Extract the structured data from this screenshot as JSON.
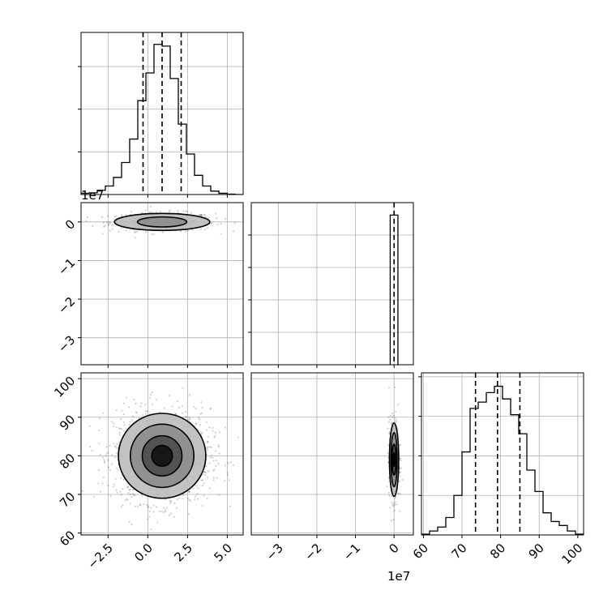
{
  "chart_data": {
    "type": "corner",
    "grid": true,
    "parameters": [
      {
        "range": [
          -4.2,
          6.0
        ],
        "ticks": [
          -2.5,
          0.0,
          2.5,
          5.0
        ],
        "tick_labels": [
          "−2.5",
          "0.0",
          "2.5",
          "5.0"
        ],
        "offset_text": "1e7",
        "quantiles": [
          -0.3,
          0.9,
          2.1
        ]
      },
      {
        "range": [
          -3.7,
          0.5
        ],
        "ticks": [
          -3,
          -2,
          -1,
          0
        ],
        "tick_labels": [
          "−3",
          "−2",
          "−1",
          "0"
        ],
        "offset_text": "1e7",
        "quantiles": [
          0.0
        ]
      },
      {
        "range": [
          59.5,
          101.5
        ],
        "ticks": [
          60,
          70,
          80,
          90,
          100
        ],
        "tick_labels": [
          "60",
          "70",
          "80",
          "90",
          "100"
        ],
        "offset_text": "",
        "quantiles": [
          73.5,
          79.2,
          85.0
        ]
      }
    ],
    "histograms": [
      {
        "bin_edges": [
          -4.2,
          -3.69,
          -3.18,
          -2.67,
          -2.16,
          -1.65,
          -1.14,
          -0.63,
          -0.12,
          0.39,
          0.9,
          1.41,
          1.92,
          2.43,
          2.94,
          3.45,
          3.96,
          4.47,
          5.0,
          5.5,
          6.0
        ],
        "counts": [
          3,
          4,
          10,
          20,
          40,
          75,
          130,
          220,
          285,
          352,
          348,
          272,
          165,
          95,
          45,
          20,
          8,
          3,
          1,
          0
        ]
      },
      {
        "bin_edges": [
          -0.1,
          0.0,
          0.1
        ],
        "counts": [
          600,
          600
        ]
      },
      {
        "bin_edges": [
          59.5,
          61.6,
          63.7,
          65.8,
          67.9,
          70.0,
          72.1,
          74.2,
          76.3,
          78.4,
          80.5,
          82.6,
          84.7,
          86.8,
          88.9,
          91.0,
          93.1,
          95.2,
          97.3,
          99.4,
          101.5
        ],
        "counts": [
          1,
          5,
          10,
          22,
          50,
          105,
          160,
          168,
          180,
          188,
          172,
          152,
          128,
          82,
          55,
          28,
          17,
          12,
          5,
          1
        ]
      }
    ],
    "hist_ylim": [
      [
        0,
        380
      ],
      [
        0,
        650
      ],
      [
        0,
        205
      ]
    ],
    "pairs": [
      {
        "x_param": 0,
        "y_param": 1,
        "center": [
          0.9,
          0.0
        ],
        "contours": [
          [
            1.55,
            0.13
          ],
          [
            3.0,
            0.22
          ]
        ]
      },
      {
        "x_param": 0,
        "y_param": 2,
        "center": [
          0.9,
          80.0
        ],
        "contours": [
          [
            0.65,
            2.7
          ],
          [
            1.25,
            5.2
          ],
          [
            2.0,
            8.2
          ],
          [
            2.75,
            11.0
          ]
        ]
      },
      {
        "x_param": 1,
        "y_param": 2,
        "center": [
          0.0,
          79.0
        ],
        "contours": [
          [
            0.02,
            1.8
          ],
          [
            0.05,
            4.0
          ],
          [
            0.08,
            7.0
          ],
          [
            0.12,
            9.5
          ]
        ]
      }
    ]
  }
}
